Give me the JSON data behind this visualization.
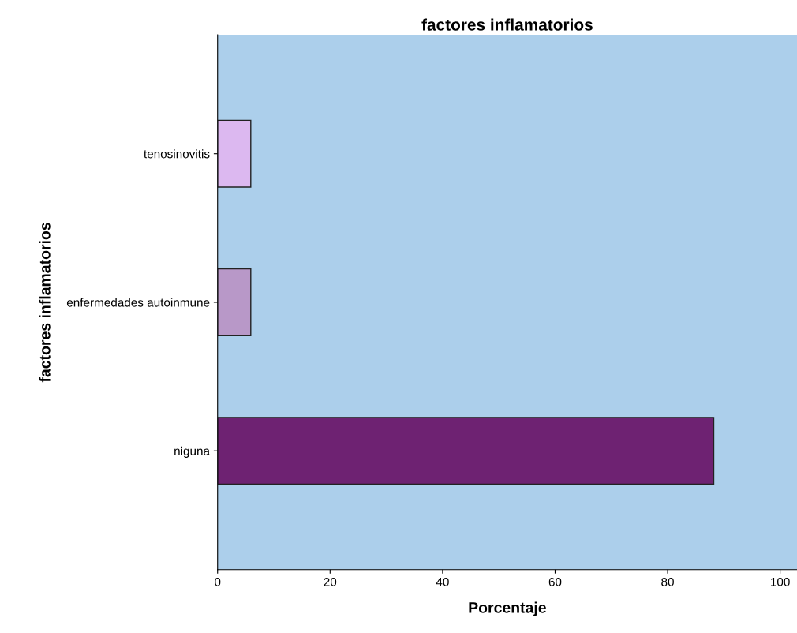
{
  "chart_data": {
    "type": "bar",
    "orientation": "horizontal",
    "title": "factores inflamatorios",
    "xlabel": "Porcentaje",
    "ylabel": "factores inflamatorios",
    "categories": [
      "tenosinovitis",
      "enfermedades autoinmune",
      "niguna"
    ],
    "values": [
      5.9,
      5.9,
      88.2
    ],
    "colors": [
      "#dcb8f0",
      "#b898c8",
      "#6e2272"
    ],
    "xlim": [
      0,
      103
    ],
    "xticks": [
      0,
      20,
      40,
      60,
      80,
      100
    ],
    "grid": false,
    "legend": false
  }
}
